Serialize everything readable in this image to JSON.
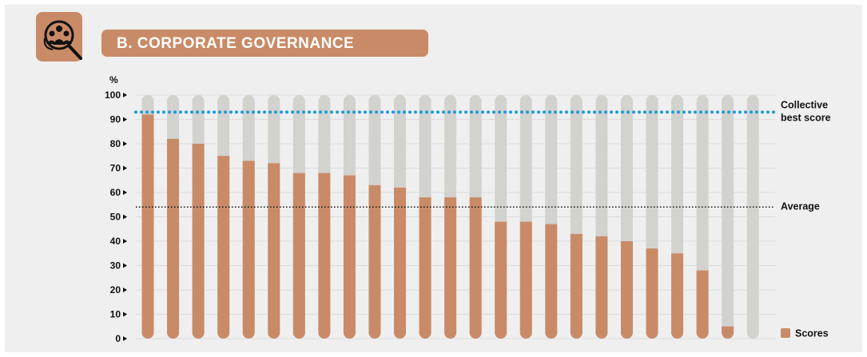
{
  "chart_data": {
    "type": "bar",
    "title": "B.  CORPORATE GOVERNANCE",
    "y_label": "%",
    "values": [
      92,
      82,
      80,
      75,
      73,
      72,
      68,
      68,
      67,
      63,
      62,
      58,
      58,
      58,
      48,
      48,
      47,
      43,
      42,
      40,
      37,
      35,
      28,
      5,
      0
    ],
    "color": "#c98b67",
    "track_color": "#d2d2cf",
    "ylim": [
      0,
      100
    ],
    "yticks": [
      0,
      10,
      20,
      30,
      40,
      50,
      60,
      70,
      80,
      90,
      100
    ],
    "grid": true,
    "legend": {
      "name": "Scores",
      "position": "lower right"
    },
    "reference_lines": [
      {
        "label_lines": [
          "Collective",
          "best score"
        ],
        "value": 93,
        "color": "#1b9bd8",
        "style": "dotted-thick"
      },
      {
        "label_lines": [
          "Average"
        ],
        "value": 54,
        "color": "#111111",
        "style": "dotted-thin"
      }
    ]
  }
}
